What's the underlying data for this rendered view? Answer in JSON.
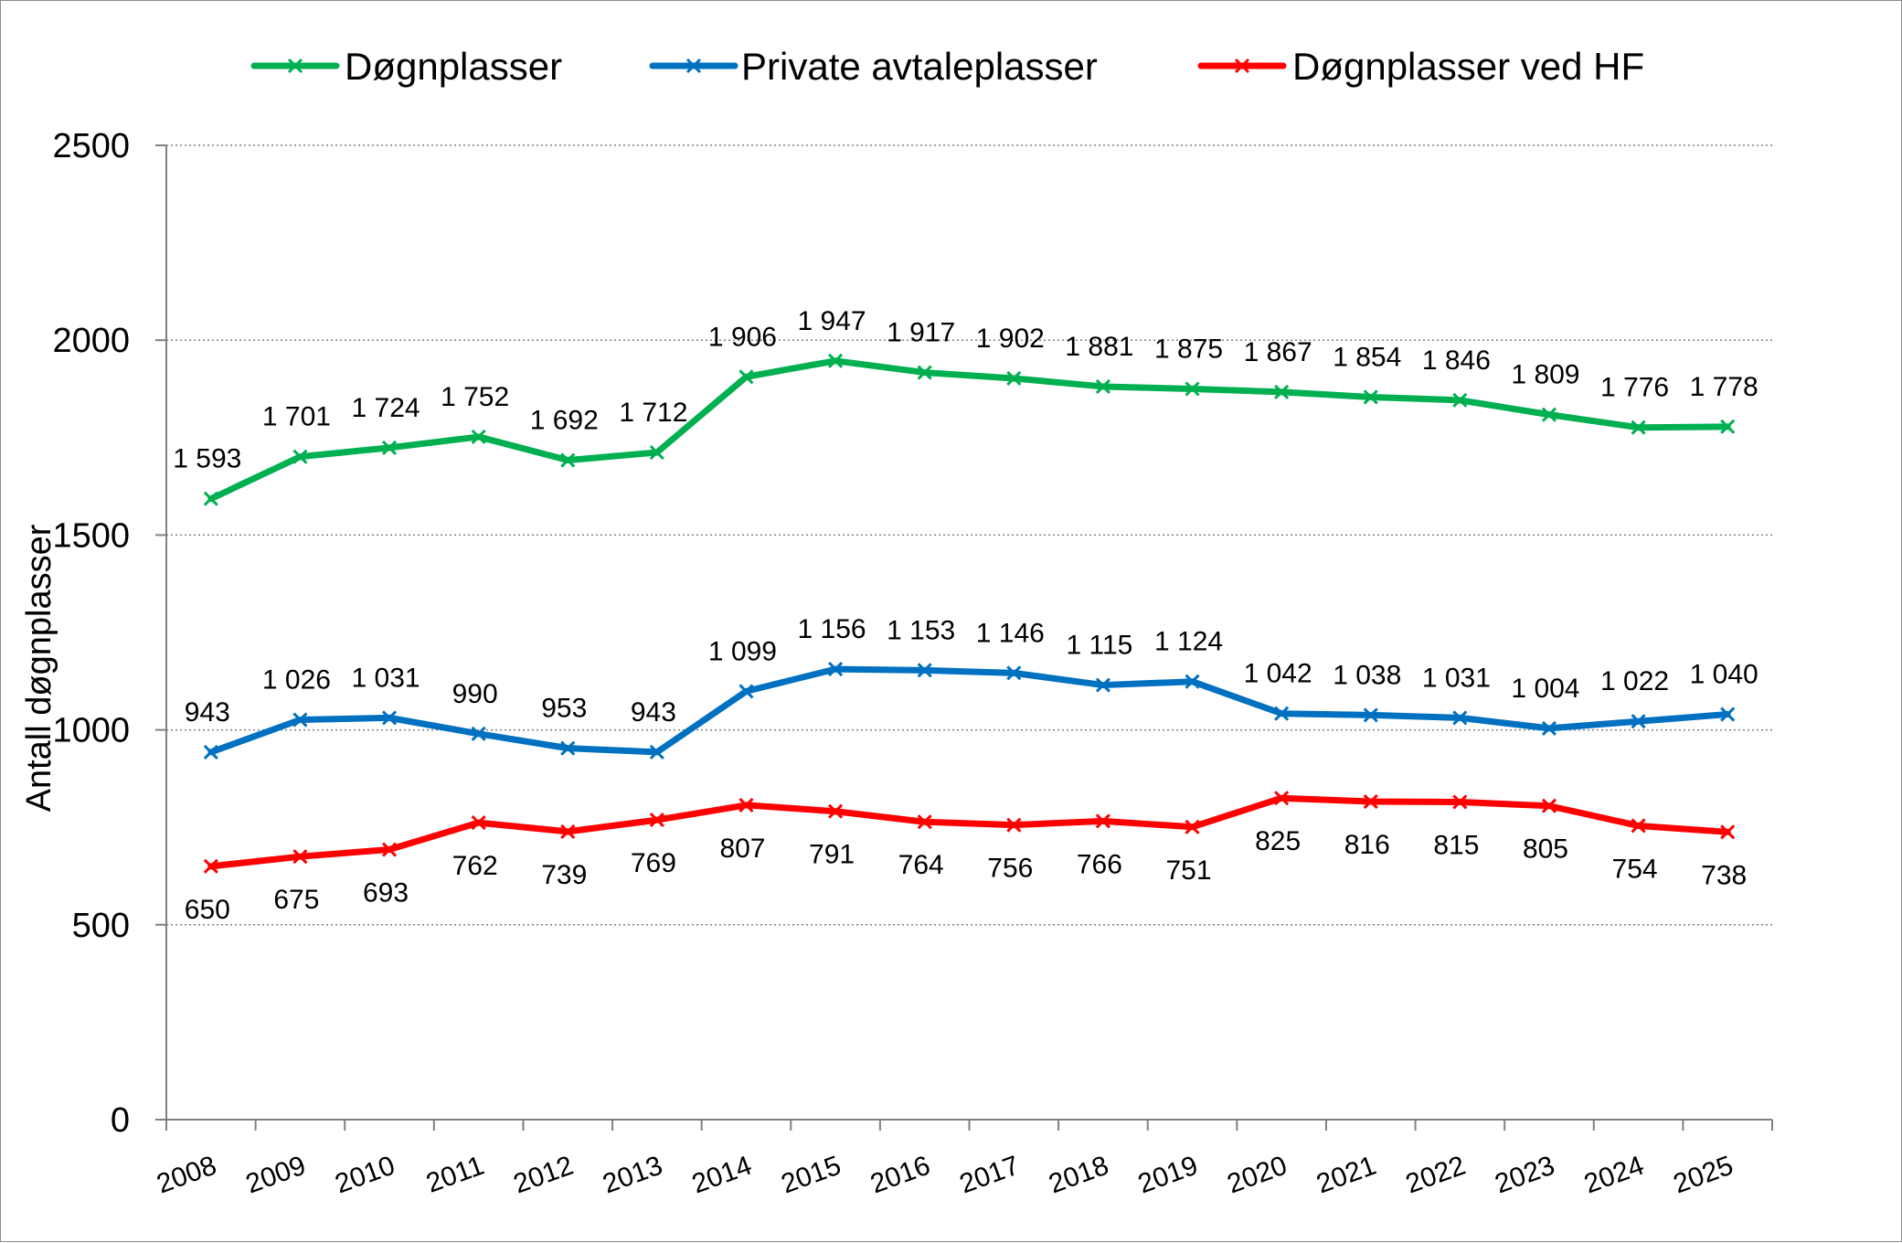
{
  "chart_data": {
    "type": "line",
    "title": "",
    "xlabel": "",
    "ylabel": "Antall døgnplasser",
    "ylim": [
      0,
      2500
    ],
    "yticks": [
      0,
      500,
      1000,
      1500,
      2000,
      2500
    ],
    "grid": "horizontal dotted",
    "legend": "top",
    "categories": [
      "2008",
      "2009",
      "2010",
      "2011",
      "2012",
      "2013",
      "2014",
      "2015",
      "2016",
      "2017",
      "2018",
      "2019",
      "2020",
      "2021",
      "2022",
      "2023",
      "2024",
      "2025"
    ],
    "series": [
      {
        "name": "Døgnplasser",
        "color": "#00b050",
        "values": [
          1593,
          1701,
          1724,
          1752,
          1692,
          1712,
          1906,
          1947,
          1917,
          1902,
          1881,
          1875,
          1867,
          1854,
          1846,
          1809,
          1776,
          1778
        ],
        "labels": [
          "1 593",
          "1 701",
          "1 724",
          "1 752",
          "1 692",
          "1 712",
          "1 906",
          "1 947",
          "1 917",
          "1 902",
          "1 881",
          "1 875",
          "1 867",
          "1 854",
          "1 846",
          "1 809",
          "1 776",
          "1 778"
        ],
        "label_position": "above"
      },
      {
        "name": "Private avtaleplasser",
        "color": "#0070c0",
        "values": [
          943,
          1026,
          1031,
          990,
          953,
          943,
          1099,
          1156,
          1153,
          1146,
          1115,
          1124,
          1042,
          1038,
          1031,
          1004,
          1022,
          1040
        ],
        "labels": [
          "943",
          "1 026",
          "1 031",
          "990",
          "953",
          "943",
          "1 099",
          "1 156",
          "1 153",
          "1 146",
          "1 115",
          "1 124",
          "1 042",
          "1 038",
          "1 031",
          "1 004",
          "1 022",
          "1 040"
        ],
        "label_position": "above"
      },
      {
        "name": "Døgnplasser ved HF",
        "color": "#ff0000",
        "values": [
          650,
          675,
          693,
          762,
          739,
          769,
          807,
          791,
          764,
          756,
          766,
          751,
          825,
          816,
          815,
          805,
          754,
          738
        ],
        "labels": [
          "650",
          "675",
          "693",
          "762",
          "739",
          "769",
          "807",
          "791",
          "764",
          "756",
          "766",
          "751",
          "825",
          "816",
          "815",
          "805",
          "754",
          "738"
        ],
        "label_position": "below"
      }
    ]
  }
}
